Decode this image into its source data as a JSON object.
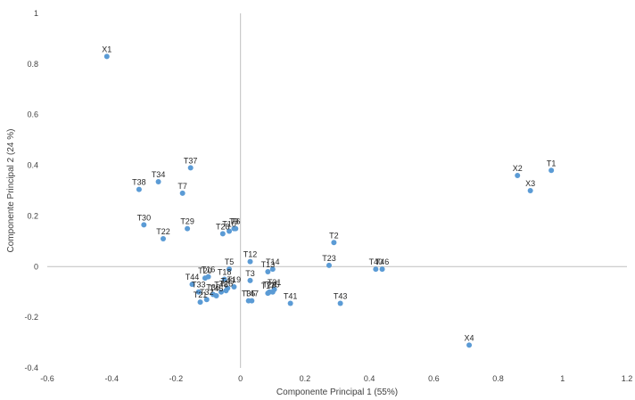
{
  "chart_data": {
    "type": "scatter",
    "xlabel": "Componente Principal 1 (55%)",
    "ylabel": "Componente Principal 2  (24 %)",
    "xlim": [
      -0.6,
      1.2
    ],
    "ylim": [
      -0.4,
      1.0
    ],
    "x_ticks": [
      -0.6,
      -0.4,
      -0.2,
      0,
      0.2,
      0.4,
      0.6,
      0.8,
      1,
      1.2
    ],
    "y_ticks": [
      -0.4,
      -0.2,
      0,
      0.2,
      0.4,
      0.6,
      0.8,
      1
    ],
    "x_tick_labels": [
      "-0.6",
      "-0.4",
      "-0.2",
      "0",
      "0.2",
      "0.4",
      "0.6",
      "0.8",
      "1",
      "1.2"
    ],
    "y_tick_labels": [
      "-0.4",
      "-0.2",
      "0",
      "0.2",
      "0.4",
      "0.6",
      "0.8",
      "1"
    ],
    "grid": false,
    "legend": "none",
    "marker_color": "#5b9bd5",
    "axis_line_color": "#bfbfbf",
    "points": [
      {
        "label": "X1",
        "x": -0.415,
        "y": 0.83
      },
      {
        "label": "X2",
        "x": 0.86,
        "y": 0.36
      },
      {
        "label": "X3",
        "x": 0.9,
        "y": 0.3
      },
      {
        "label": "X4",
        "x": 0.71,
        "y": -0.31
      },
      {
        "label": "T1",
        "x": 0.965,
        "y": 0.38
      },
      {
        "label": "T2",
        "x": 0.29,
        "y": 0.095
      },
      {
        "label": "T3",
        "x": 0.03,
        "y": -0.055
      },
      {
        "label": "T5",
        "x": -0.035,
        "y": -0.01
      },
      {
        "label": "T6",
        "x": -0.015,
        "y": 0.15
      },
      {
        "label": "T7",
        "x": -0.18,
        "y": 0.29
      },
      {
        "label": "T9",
        "x": -0.02,
        "y": 0.15
      },
      {
        "label": "T10",
        "x": -0.035,
        "y": 0.14
      },
      {
        "label": "T12",
        "x": 0.03,
        "y": 0.02
      },
      {
        "label": "T13",
        "x": 0.085,
        "y": -0.02
      },
      {
        "label": "T14",
        "x": 0.1,
        "y": -0.01
      },
      {
        "label": "T15",
        "x": 0.1,
        "y": -0.1
      },
      {
        "label": "T16",
        "x": -0.1,
        "y": -0.04
      },
      {
        "label": "T17",
        "x": 0.085,
        "y": -0.105
      },
      {
        "label": "T18",
        "x": -0.05,
        "y": -0.05
      },
      {
        "label": "T19",
        "x": -0.02,
        "y": -0.08
      },
      {
        "label": "T20",
        "x": -0.11,
        "y": -0.045
      },
      {
        "label": "T21",
        "x": -0.125,
        "y": -0.14
      },
      {
        "label": "T22",
        "x": -0.24,
        "y": 0.11
      },
      {
        "label": "T23",
        "x": 0.275,
        "y": 0.005
      },
      {
        "label": "T24",
        "x": 0.09,
        "y": -0.1
      },
      {
        "label": "T26",
        "x": -0.045,
        "y": -0.095
      },
      {
        "label": "T28",
        "x": -0.055,
        "y": 0.13
      },
      {
        "label": "T29",
        "x": -0.165,
        "y": 0.15
      },
      {
        "label": "T30",
        "x": -0.3,
        "y": 0.165
      },
      {
        "label": "T31",
        "x": 0.105,
        "y": -0.09
      },
      {
        "label": "T32",
        "x": -0.105,
        "y": -0.13
      },
      {
        "label": "T33",
        "x": -0.13,
        "y": -0.1
      },
      {
        "label": "T34",
        "x": -0.255,
        "y": 0.335
      },
      {
        "label": "T35",
        "x": 0.025,
        "y": -0.135
      },
      {
        "label": "T36",
        "x": -0.085,
        "y": -0.11
      },
      {
        "label": "T37",
        "x": -0.155,
        "y": 0.39
      },
      {
        "label": "T38",
        "x": -0.315,
        "y": 0.305
      },
      {
        "label": "T40",
        "x": 0.42,
        "y": -0.01
      },
      {
        "label": "T41",
        "x": 0.155,
        "y": -0.145
      },
      {
        "label": "T43",
        "x": 0.31,
        "y": -0.145
      },
      {
        "label": "T44",
        "x": -0.15,
        "y": -0.07
      },
      {
        "label": "T45",
        "x": -0.075,
        "y": -0.115
      },
      {
        "label": "T46",
        "x": 0.44,
        "y": -0.01
      },
      {
        "label": "T47",
        "x": 0.035,
        "y": -0.135
      },
      {
        "label": "T48",
        "x": -0.06,
        "y": -0.1
      },
      {
        "label": "T49",
        "x": -0.04,
        "y": -0.085
      }
    ]
  }
}
